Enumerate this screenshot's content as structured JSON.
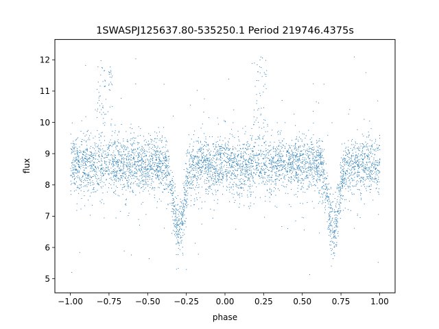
{
  "chart_data": {
    "type": "scatter",
    "title": "1SWASPJ125637.80-535250.1 Period 219746.4375s",
    "xlabel": "phase",
    "ylabel": "flux",
    "xlim": [
      -1.1,
      1.1
    ],
    "ylim": [
      4.55,
      12.65
    ],
    "xticks": [
      -1.0,
      -0.75,
      -0.5,
      -0.25,
      0.0,
      0.25,
      0.5,
      0.75,
      1.0
    ],
    "xtick_labels": [
      "−1.00",
      "−0.75",
      "−0.50",
      "−0.25",
      "0.00",
      "0.25",
      "0.50",
      "0.75",
      "1.00"
    ],
    "yticks": [
      5,
      6,
      7,
      8,
      9,
      10,
      11,
      12
    ],
    "ytick_labels": [
      "5",
      "6",
      "7",
      "8",
      "9",
      "10",
      "11",
      "12"
    ],
    "grid": false,
    "legend": "none",
    "point_color": "#1f77b4",
    "series": [
      {
        "x_range": [
          -1.0,
          1.0
        ],
        "baseline_flux": 8.65,
        "typical_scatter": 0.45,
        "dips": [
          {
            "phase": -0.3,
            "min_flux": 6.1
          },
          {
            "phase": 0.7,
            "min_flux": 6.1
          }
        ],
        "bright_excursions": [
          {
            "phase": -0.78,
            "max_flux": 12.1
          },
          {
            "phase": 0.22,
            "max_flux": 12.1
          }
        ],
        "outlier_flux_range": [
          4.9,
          12.3
        ]
      }
    ]
  }
}
